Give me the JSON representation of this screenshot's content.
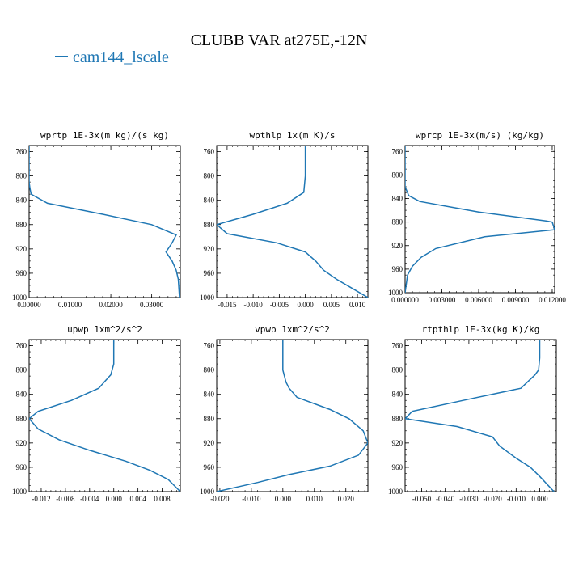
{
  "title": "CLUBB VAR at275E,-12N",
  "legend": {
    "label": "cam144_lscale",
    "color": "#1f77b4"
  },
  "chart_data": [
    {
      "type": "line",
      "title": "wprtp  1E-3x(m kg)/(s kg)",
      "xlim": [
        0,
        0.037
      ],
      "ylim": [
        1000,
        750
      ],
      "xticks": [
        0,
        0.01,
        0.02,
        0.03
      ],
      "xtick_labels": [
        "0.00000",
        "0.01000",
        "0.02000",
        "0.03000"
      ],
      "yticks": [
        760,
        800,
        840,
        880,
        920,
        960,
        1000
      ],
      "series": [
        {
          "name": "cam144_lscale",
          "color": "#1f77b4",
          "x": [
            0,
            0,
            0.0002,
            0.0005,
            0.0045,
            0.018,
            0.03,
            0.036,
            0.035,
            0.0335,
            0.035,
            0.036,
            0.0365,
            0.0368
          ],
          "y": [
            750,
            810,
            820,
            830,
            845,
            863,
            880,
            897,
            910,
            925,
            940,
            955,
            970,
            1000
          ]
        }
      ]
    },
    {
      "type": "line",
      "title": "wpthlp  1x(m K)/s",
      "xlim": [
        -0.017,
        0.012
      ],
      "ylim": [
        1000,
        750
      ],
      "xticks": [
        -0.015,
        -0.01,
        -0.005,
        0,
        0.005,
        0.01
      ],
      "xtick_labels": [
        "-0.015",
        "-0.010",
        "-0.005",
        "0.000",
        "0.005",
        "0.010"
      ],
      "yticks": [
        760,
        800,
        840,
        880,
        920,
        960,
        1000
      ],
      "series": [
        {
          "name": "cam144_lscale",
          "color": "#1f77b4",
          "x": [
            0,
            0,
            -0.0003,
            -0.0035,
            -0.01,
            -0.017,
            -0.015,
            -0.0055,
            0.0,
            0.002,
            0.0035,
            0.006,
            0.009,
            0.012
          ],
          "y": [
            750,
            800,
            827,
            845,
            863,
            880,
            895,
            910,
            925,
            940,
            955,
            970,
            985,
            1000
          ]
        }
      ]
    },
    {
      "type": "line",
      "title": "wprcp  1E-3x(m/s) (kg/kg)",
      "xlim": [
        0,
        0.0122
      ],
      "ylim": [
        1000,
        750
      ],
      "xticks": [
        0,
        0.003,
        0.006,
        0.009,
        0.012
      ],
      "xtick_labels": [
        "0.000000",
        "0.003000",
        "0.006000",
        "0.009000",
        "0.012000"
      ],
      "yticks": [
        760,
        800,
        840,
        880,
        920,
        960,
        1000
      ],
      "series": [
        {
          "name": "cam144_lscale",
          "color": "#1f77b4",
          "x": [
            0,
            0,
            0.0003,
            0.0012,
            0.006,
            0.0115,
            0.012,
            0.0122,
            0.0065,
            0.0025,
            0.0013,
            0.0006,
            0.0002,
            0
          ],
          "y": [
            750,
            820,
            835,
            845,
            863,
            878,
            880,
            893,
            905,
            925,
            940,
            955,
            970,
            1000
          ]
        }
      ]
    },
    {
      "type": "line",
      "title": "upwp  1xm^2/s^2",
      "xlim": [
        -0.014,
        0.011
      ],
      "ylim": [
        1000,
        750
      ],
      "xticks": [
        -0.012,
        -0.008,
        -0.004,
        0,
        0.004,
        0.008
      ],
      "xtick_labels": [
        "-0.012",
        "-0.008",
        "-0.004",
        "0.000",
        "0.004",
        "0.008"
      ],
      "yticks": [
        760,
        800,
        840,
        880,
        920,
        960,
        1000
      ],
      "series": [
        {
          "name": "cam144_lscale",
          "color": "#1f77b4",
          "x": [
            0,
            0,
            -0.0005,
            -0.0025,
            -0.007,
            -0.0125,
            -0.014,
            -0.0125,
            -0.009,
            -0.004,
            0.002,
            0.006,
            0.009,
            0.011
          ],
          "y": [
            750,
            790,
            808,
            830,
            850,
            868,
            880,
            897,
            915,
            932,
            950,
            965,
            980,
            1000
          ]
        }
      ]
    },
    {
      "type": "line",
      "title": "vpwp  1xm^2/s^2",
      "xlim": [
        -0.021,
        0.027
      ],
      "ylim": [
        1000,
        750
      ],
      "xticks": [
        -0.02,
        -0.01,
        0,
        0.01,
        0.02
      ],
      "xtick_labels": [
        "-0.020",
        "-0.010",
        "0.000",
        "0.010",
        "0.020"
      ],
      "yticks": [
        760,
        800,
        840,
        880,
        920,
        960,
        1000
      ],
      "series": [
        {
          "name": "cam144_lscale",
          "color": "#1f77b4",
          "x": [
            0,
            0,
            0.001,
            0.002,
            0.0045,
            0.015,
            0.021,
            0.0255,
            0.027,
            0.024,
            0.015,
            0.002,
            -0.008,
            -0.021
          ],
          "y": [
            750,
            800,
            820,
            830,
            845,
            865,
            880,
            900,
            920,
            940,
            958,
            972,
            985,
            1000
          ]
        }
      ]
    },
    {
      "type": "line",
      "title": "rtpthlp  1E-3x(kg K)/kg",
      "xlim": [
        -0.057,
        0.007
      ],
      "ylim": [
        1000,
        750
      ],
      "xticks": [
        -0.05,
        -0.04,
        -0.03,
        -0.02,
        -0.01,
        0
      ],
      "xtick_labels": [
        "-0.050",
        "-0.040",
        "-0.030",
        "-0.020",
        "-0.010",
        "0.000"
      ],
      "yticks": [
        760,
        800,
        840,
        880,
        920,
        960,
        1000
      ],
      "series": [
        {
          "name": "cam144_lscale",
          "color": "#1f77b4",
          "x": [
            0,
            0,
            -0.0005,
            -0.002,
            -0.008,
            -0.03,
            -0.054,
            -0.057,
            -0.035,
            -0.02,
            -0.017,
            -0.01,
            -0.004,
            0.0,
            0.006
          ],
          "y": [
            750,
            780,
            800,
            808,
            830,
            848,
            868,
            880,
            893,
            910,
            925,
            945,
            960,
            975,
            1000
          ]
        }
      ]
    }
  ]
}
